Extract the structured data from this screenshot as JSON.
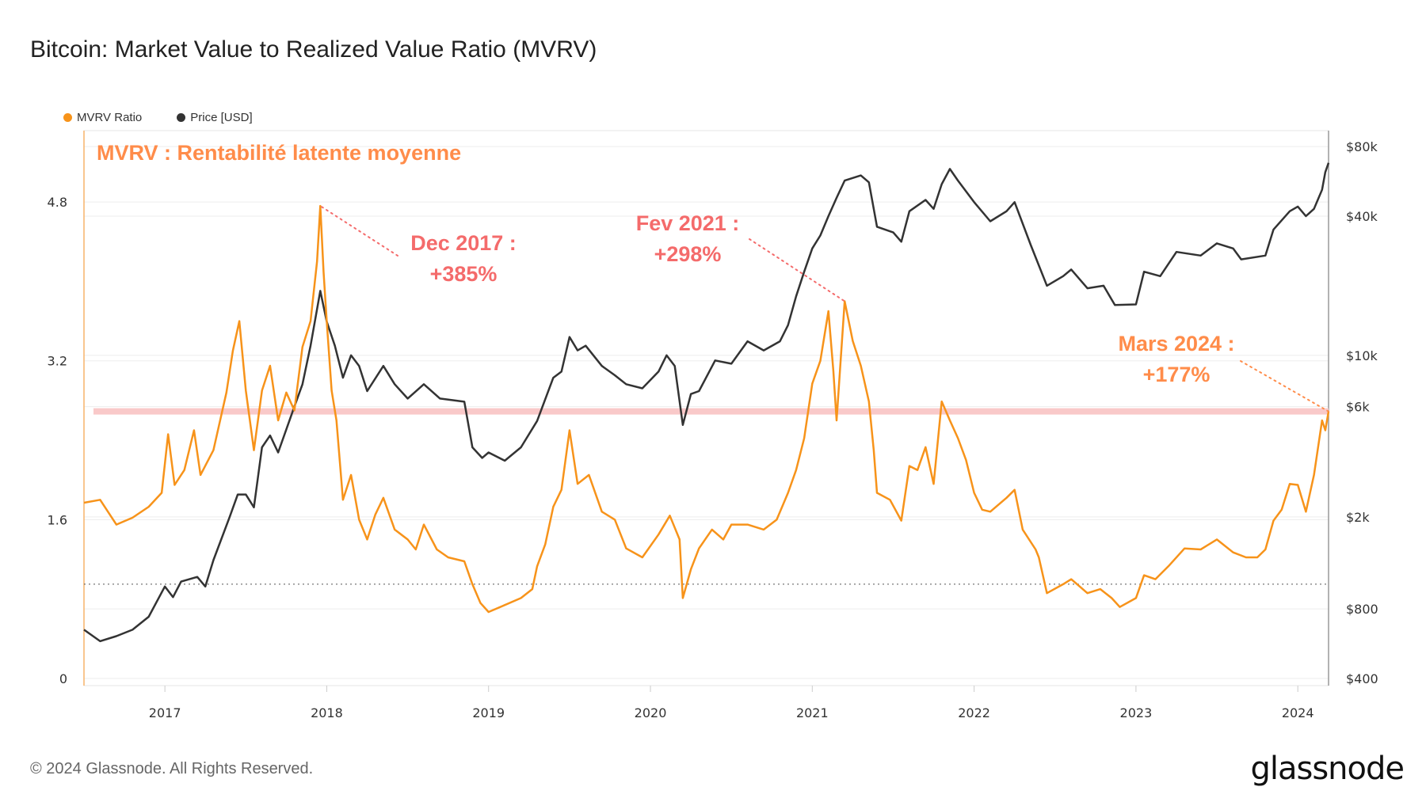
{
  "header": {
    "title": "Bitcoin: Market Value to Realized Value Ratio (MVRV)"
  },
  "footer": {
    "copyright": "© 2024 Glassnode. All Rights Reserved.",
    "logo": "glassnode"
  },
  "colors": {
    "mvrv": "#f7931a",
    "price": "#333333",
    "annotation_red": "#f46b6b",
    "annotation_orange": "#ff8c4a",
    "band": "#f9c9c9"
  },
  "chart_data": {
    "type": "line",
    "title": "",
    "overlay_title": "MVRV : Rentabilité latente moyenne",
    "legend": [
      {
        "label": "MVRV Ratio",
        "color": "#f7931a"
      },
      {
        "label": "Price [USD]",
        "color": "#333333"
      }
    ],
    "legend_position": "top-left",
    "x_ticks": [
      "2017",
      "2018",
      "2019",
      "2020",
      "2021",
      "2022",
      "2023",
      "2024"
    ],
    "xlim": [
      2016.5,
      2024.19
    ],
    "y_left": {
      "ticks": [
        "0",
        "1.6",
        "3.2",
        "4.8"
      ],
      "tick_values": [
        0,
        1.6,
        3.2,
        4.8
      ],
      "range": [
        0,
        5.52
      ]
    },
    "y_right": {
      "scale": "log",
      "ticks": [
        "$400",
        "$800",
        "$2k",
        "$6k",
        "$10k",
        "$40k",
        "$80k"
      ],
      "tick_values": [
        400,
        800,
        2000,
        6000,
        10000,
        40000,
        80000
      ],
      "range": [
        400,
        80000
      ]
    },
    "grid": true,
    "reference_band_mvrv": 2.69,
    "reference_line_mvrv": 0.95,
    "series": [
      {
        "name": "MVRV Ratio",
        "axis": "left",
        "points": [
          [
            2016.5,
            1.77
          ],
          [
            2016.6,
            1.8
          ],
          [
            2016.7,
            1.55
          ],
          [
            2016.8,
            1.62
          ],
          [
            2016.9,
            1.73
          ],
          [
            2016.98,
            1.87
          ],
          [
            2017.02,
            2.46
          ],
          [
            2017.06,
            1.95
          ],
          [
            2017.12,
            2.1
          ],
          [
            2017.18,
            2.5
          ],
          [
            2017.22,
            2.05
          ],
          [
            2017.3,
            2.3
          ],
          [
            2017.38,
            2.88
          ],
          [
            2017.42,
            3.3
          ],
          [
            2017.46,
            3.6
          ],
          [
            2017.5,
            2.9
          ],
          [
            2017.55,
            2.3
          ],
          [
            2017.6,
            2.9
          ],
          [
            2017.65,
            3.15
          ],
          [
            2017.7,
            2.6
          ],
          [
            2017.75,
            2.88
          ],
          [
            2017.8,
            2.7
          ],
          [
            2017.85,
            3.34
          ],
          [
            2017.9,
            3.6
          ],
          [
            2017.94,
            4.2
          ],
          [
            2017.96,
            4.76
          ],
          [
            2017.98,
            4.1
          ],
          [
            2018.0,
            3.6
          ],
          [
            2018.03,
            2.9
          ],
          [
            2018.06,
            2.6
          ],
          [
            2018.1,
            1.8
          ],
          [
            2018.15,
            2.05
          ],
          [
            2018.2,
            1.6
          ],
          [
            2018.25,
            1.4
          ],
          [
            2018.3,
            1.65
          ],
          [
            2018.35,
            1.82
          ],
          [
            2018.42,
            1.5
          ],
          [
            2018.5,
            1.4
          ],
          [
            2018.55,
            1.3
          ],
          [
            2018.6,
            1.55
          ],
          [
            2018.68,
            1.3
          ],
          [
            2018.75,
            1.22
          ],
          [
            2018.85,
            1.18
          ],
          [
            2018.9,
            0.95
          ],
          [
            2018.95,
            0.76
          ],
          [
            2019.0,
            0.67
          ],
          [
            2019.1,
            0.74
          ],
          [
            2019.2,
            0.81
          ],
          [
            2019.27,
            0.9
          ],
          [
            2019.3,
            1.13
          ],
          [
            2019.35,
            1.35
          ],
          [
            2019.4,
            1.73
          ],
          [
            2019.45,
            1.9
          ],
          [
            2019.5,
            2.5
          ],
          [
            2019.55,
            1.96
          ],
          [
            2019.62,
            2.05
          ],
          [
            2019.7,
            1.68
          ],
          [
            2019.78,
            1.6
          ],
          [
            2019.85,
            1.31
          ],
          [
            2019.95,
            1.22
          ],
          [
            2020.05,
            1.45
          ],
          [
            2020.12,
            1.64
          ],
          [
            2020.18,
            1.4
          ],
          [
            2020.2,
            0.81
          ],
          [
            2020.25,
            1.1
          ],
          [
            2020.3,
            1.31
          ],
          [
            2020.38,
            1.5
          ],
          [
            2020.45,
            1.4
          ],
          [
            2020.5,
            1.55
          ],
          [
            2020.6,
            1.55
          ],
          [
            2020.7,
            1.5
          ],
          [
            2020.78,
            1.6
          ],
          [
            2020.85,
            1.87
          ],
          [
            2020.9,
            2.1
          ],
          [
            2020.95,
            2.42
          ],
          [
            2021.0,
            2.97
          ],
          [
            2021.05,
            3.2
          ],
          [
            2021.1,
            3.7
          ],
          [
            2021.13,
            3.1
          ],
          [
            2021.15,
            2.6
          ],
          [
            2021.2,
            3.8
          ],
          [
            2021.25,
            3.4
          ],
          [
            2021.3,
            3.15
          ],
          [
            2021.35,
            2.79
          ],
          [
            2021.38,
            2.3
          ],
          [
            2021.4,
            1.87
          ],
          [
            2021.48,
            1.8
          ],
          [
            2021.55,
            1.59
          ],
          [
            2021.6,
            2.14
          ],
          [
            2021.65,
            2.1
          ],
          [
            2021.7,
            2.33
          ],
          [
            2021.75,
            1.96
          ],
          [
            2021.8,
            2.79
          ],
          [
            2021.85,
            2.6
          ],
          [
            2021.9,
            2.42
          ],
          [
            2021.95,
            2.2
          ],
          [
            2022.0,
            1.87
          ],
          [
            2022.05,
            1.7
          ],
          [
            2022.1,
            1.68
          ],
          [
            2022.2,
            1.82
          ],
          [
            2022.25,
            1.9
          ],
          [
            2022.3,
            1.5
          ],
          [
            2022.38,
            1.3
          ],
          [
            2022.4,
            1.22
          ],
          [
            2022.45,
            0.86
          ],
          [
            2022.55,
            0.95
          ],
          [
            2022.6,
            1.0
          ],
          [
            2022.7,
            0.86
          ],
          [
            2022.78,
            0.9
          ],
          [
            2022.85,
            0.81
          ],
          [
            2022.9,
            0.72
          ],
          [
            2023.0,
            0.81
          ],
          [
            2023.05,
            1.04
          ],
          [
            2023.12,
            1.0
          ],
          [
            2023.2,
            1.13
          ],
          [
            2023.3,
            1.31
          ],
          [
            2023.4,
            1.3
          ],
          [
            2023.5,
            1.4
          ],
          [
            2023.6,
            1.27
          ],
          [
            2023.68,
            1.22
          ],
          [
            2023.75,
            1.22
          ],
          [
            2023.8,
            1.3
          ],
          [
            2023.85,
            1.59
          ],
          [
            2023.9,
            1.7
          ],
          [
            2023.95,
            1.96
          ],
          [
            2024.0,
            1.95
          ],
          [
            2024.05,
            1.68
          ],
          [
            2024.1,
            2.05
          ],
          [
            2024.15,
            2.6
          ],
          [
            2024.17,
            2.5
          ],
          [
            2024.19,
            2.69
          ]
        ]
      },
      {
        "name": "Price [USD]",
        "axis": "right",
        "points": [
          [
            2016.5,
            650
          ],
          [
            2016.6,
            580
          ],
          [
            2016.7,
            610
          ],
          [
            2016.8,
            650
          ],
          [
            2016.9,
            740
          ],
          [
            2017.0,
            1000
          ],
          [
            2017.05,
            900
          ],
          [
            2017.1,
            1050
          ],
          [
            2017.2,
            1100
          ],
          [
            2017.25,
            1000
          ],
          [
            2017.3,
            1300
          ],
          [
            2017.4,
            2000
          ],
          [
            2017.45,
            2500
          ],
          [
            2017.5,
            2500
          ],
          [
            2017.55,
            2200
          ],
          [
            2017.6,
            4000
          ],
          [
            2017.65,
            4500
          ],
          [
            2017.7,
            3800
          ],
          [
            2017.8,
            6000
          ],
          [
            2017.85,
            7500
          ],
          [
            2017.9,
            11000
          ],
          [
            2017.96,
            19000
          ],
          [
            2018.0,
            14000
          ],
          [
            2018.05,
            11000
          ],
          [
            2018.1,
            8000
          ],
          [
            2018.15,
            10000
          ],
          [
            2018.2,
            9000
          ],
          [
            2018.25,
            7000
          ],
          [
            2018.35,
            9000
          ],
          [
            2018.42,
            7500
          ],
          [
            2018.5,
            6500
          ],
          [
            2018.6,
            7500
          ],
          [
            2018.7,
            6500
          ],
          [
            2018.85,
            6300
          ],
          [
            2018.9,
            4000
          ],
          [
            2018.96,
            3600
          ],
          [
            2019.0,
            3800
          ],
          [
            2019.1,
            3500
          ],
          [
            2019.2,
            4000
          ],
          [
            2019.3,
            5200
          ],
          [
            2019.4,
            8000
          ],
          [
            2019.45,
            8500
          ],
          [
            2019.5,
            12000
          ],
          [
            2019.55,
            10500
          ],
          [
            2019.6,
            11000
          ],
          [
            2019.7,
            9000
          ],
          [
            2019.78,
            8200
          ],
          [
            2019.85,
            7500
          ],
          [
            2019.95,
            7200
          ],
          [
            2020.05,
            8500
          ],
          [
            2020.1,
            10000
          ],
          [
            2020.15,
            9000
          ],
          [
            2020.2,
            5000
          ],
          [
            2020.25,
            6800
          ],
          [
            2020.3,
            7000
          ],
          [
            2020.4,
            9500
          ],
          [
            2020.5,
            9200
          ],
          [
            2020.6,
            11500
          ],
          [
            2020.7,
            10500
          ],
          [
            2020.8,
            11500
          ],
          [
            2020.85,
            13500
          ],
          [
            2020.9,
            18000
          ],
          [
            2020.95,
            23000
          ],
          [
            2021.0,
            29000
          ],
          [
            2021.05,
            33000
          ],
          [
            2021.1,
            40000
          ],
          [
            2021.15,
            48000
          ],
          [
            2021.2,
            57000
          ],
          [
            2021.3,
            60000
          ],
          [
            2021.35,
            56000
          ],
          [
            2021.4,
            36000
          ],
          [
            2021.5,
            34000
          ],
          [
            2021.55,
            31000
          ],
          [
            2021.6,
            42000
          ],
          [
            2021.7,
            47000
          ],
          [
            2021.75,
            43000
          ],
          [
            2021.8,
            55000
          ],
          [
            2021.85,
            64000
          ],
          [
            2021.9,
            57000
          ],
          [
            2022.0,
            46000
          ],
          [
            2022.1,
            38000
          ],
          [
            2022.2,
            42000
          ],
          [
            2022.25,
            46000
          ],
          [
            2022.35,
            30000
          ],
          [
            2022.45,
            20000
          ],
          [
            2022.55,
            22000
          ],
          [
            2022.6,
            23500
          ],
          [
            2022.7,
            19500
          ],
          [
            2022.8,
            20000
          ],
          [
            2022.87,
            16500
          ],
          [
            2023.0,
            16600
          ],
          [
            2023.05,
            23000
          ],
          [
            2023.15,
            22000
          ],
          [
            2023.25,
            28000
          ],
          [
            2023.4,
            27000
          ],
          [
            2023.5,
            30500
          ],
          [
            2023.6,
            29000
          ],
          [
            2023.65,
            26000
          ],
          [
            2023.8,
            27000
          ],
          [
            2023.85,
            35000
          ],
          [
            2023.95,
            42000
          ],
          [
            2024.0,
            44000
          ],
          [
            2024.05,
            40000
          ],
          [
            2024.1,
            43000
          ],
          [
            2024.15,
            52000
          ],
          [
            2024.17,
            62000
          ],
          [
            2024.19,
            68000
          ]
        ]
      }
    ],
    "annotations": [
      {
        "line1": "Dec 2017 :",
        "line2": "+385%",
        "color": "#f46b6b",
        "x": 2017.96,
        "mvrv": 4.76
      },
      {
        "line1": "Fev 2021 :",
        "line2": "+298%",
        "color": "#f46b6b",
        "x": 2021.2,
        "mvrv": 3.8
      },
      {
        "line1": "Mars 2024 :",
        "line2": "+177%",
        "color": "#ff8c4a",
        "x": 2024.19,
        "mvrv": 2.69
      }
    ]
  }
}
